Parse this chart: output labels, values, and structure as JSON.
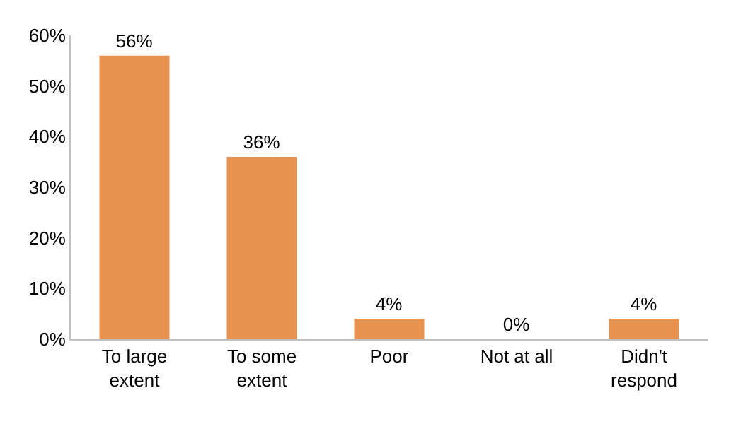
{
  "chart_data": {
    "type": "bar",
    "categories": [
      "To large\nextent",
      "To some\nextent",
      "Poor",
      "Not at all",
      "Didn't\nrespond"
    ],
    "values": [
      56,
      36,
      4,
      0,
      4
    ],
    "value_labels": [
      "56%",
      "36%",
      "4%",
      "0%",
      "4%"
    ],
    "color": "#e8924f",
    "ylim": [
      0,
      60
    ],
    "yticks": [
      {
        "value": 0,
        "label": "0%"
      },
      {
        "value": 10,
        "label": "10%"
      },
      {
        "value": 20,
        "label": "20%"
      },
      {
        "value": 30,
        "label": "30%"
      },
      {
        "value": 40,
        "label": "40%"
      },
      {
        "value": 50,
        "label": "50%"
      },
      {
        "value": 60,
        "label": "60%"
      }
    ],
    "legend": false
  }
}
